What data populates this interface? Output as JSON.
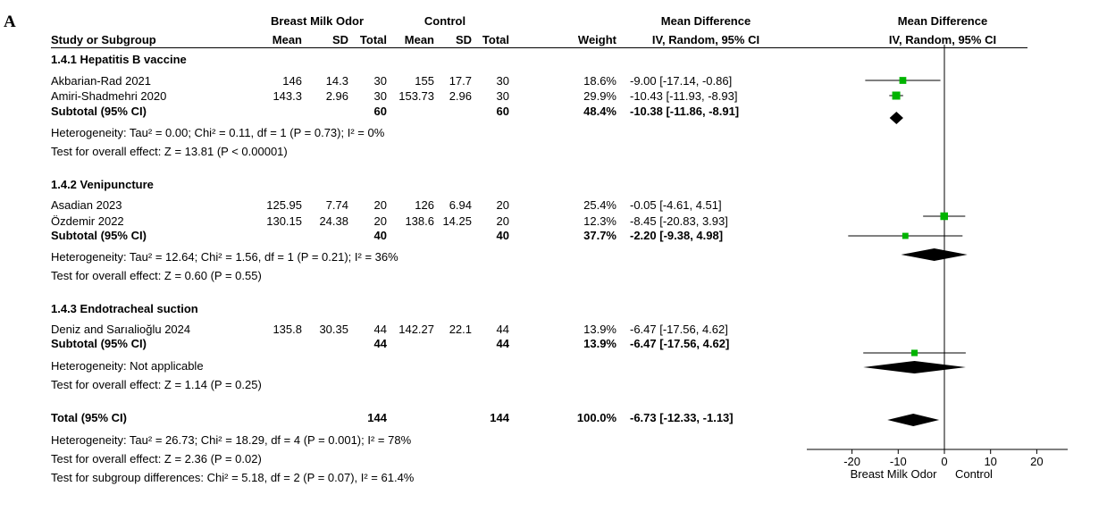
{
  "panel_label": "A",
  "header": {
    "group1": "Breast Milk Odor",
    "group2": "Control",
    "effect_line1": "Mean Difference",
    "effect_line2": "IV, Random, 95% CI",
    "plot_line1": "Mean Difference",
    "plot_line2": "IV, Random, 95% CI",
    "study_col": "Study or Subgroup",
    "mean1": "Mean",
    "sd1": "SD",
    "total1": "Total",
    "mean2": "Mean",
    "sd2": "SD",
    "total2": "Total",
    "weight": "Weight"
  },
  "subgroups": [
    {
      "title": "1.4.1 Hepatitis B vaccine",
      "studies": [
        {
          "name": "Akbarian-Rad 2021",
          "mean1": "146",
          "sd1": "14.3",
          "n1": "30",
          "mean2": "155",
          "sd2": "17.7",
          "n2": "30",
          "weight": "18.6%",
          "ci": "-9.00 [-17.14, -0.86]"
        },
        {
          "name": "Amiri-Shadmehri 2020",
          "mean1": "143.3",
          "sd1": "2.96",
          "n1": "30",
          "mean2": "153.73",
          "sd2": "2.96",
          "n2": "30",
          "weight": "29.9%",
          "ci": "-10.43 [-11.93, -8.93]"
        }
      ],
      "subtotal": {
        "label": "Subtotal (95% CI)",
        "n1": "60",
        "n2": "60",
        "weight": "48.4%",
        "ci": "-10.38 [-11.86, -8.91]"
      },
      "heterogeneity": "Heterogeneity: Tau² = 0.00; Chi² = 0.11, df = 1 (P = 0.73); I² = 0%",
      "overall": "Test for overall effect: Z = 13.81 (P < 0.00001)"
    },
    {
      "title": "1.4.2 Venipuncture",
      "studies": [
        {
          "name": "Asadian 2023",
          "mean1": "125.95",
          "sd1": "7.74",
          "n1": "20",
          "mean2": "126",
          "sd2": "6.94",
          "n2": "20",
          "weight": "25.4%",
          "ci": "-0.05 [-4.61, 4.51]"
        },
        {
          "name": "Özdemir 2022",
          "mean1": "130.15",
          "sd1": "24.38",
          "n1": "20",
          "mean2": "138.6",
          "sd2": "14.25",
          "n2": "20",
          "weight": "12.3%",
          "ci": "-8.45 [-20.83, 3.93]"
        }
      ],
      "subtotal": {
        "label": "Subtotal (95% CI)",
        "n1": "40",
        "n2": "40",
        "weight": "37.7%",
        "ci": "-2.20 [-9.38, 4.98]"
      },
      "heterogeneity": "Heterogeneity: Tau² = 12.64; Chi² = 1.56, df = 1 (P = 0.21); I² = 36%",
      "overall": "Test for overall effect: Z = 0.60 (P = 0.55)"
    },
    {
      "title": "1.4.3 Endotracheal suction",
      "studies": [
        {
          "name": "Deniz and Sarıalioğlu 2024",
          "mean1": "135.8",
          "sd1": "30.35",
          "n1": "44",
          "mean2": "142.27",
          "sd2": "22.1",
          "n2": "44",
          "weight": "13.9%",
          "ci": "-6.47 [-17.56, 4.62]"
        }
      ],
      "subtotal": {
        "label": "Subtotal (95% CI)",
        "n1": "44",
        "n2": "44",
        "weight": "13.9%",
        "ci": "-6.47 [-17.56, 4.62]"
      },
      "heterogeneity": "Heterogeneity: Not applicable",
      "overall": "Test for overall effect: Z = 1.14 (P = 0.25)"
    }
  ],
  "total": {
    "label": "Total (95% CI)",
    "n1": "144",
    "n2": "144",
    "weight": "100.0%",
    "ci": "-6.73 [-12.33, -1.13]",
    "heterogeneity": "Heterogeneity: Tau² = 26.73; Chi² = 18.29, df = 4 (P = 0.001); I² = 78%",
    "overall": "Test for overall effect: Z = 2.36 (P = 0.02)",
    "subgroup_diff": "Test for subgroup differences: Chi² = 5.18, df = 2 (P = 0.07), I² = 61.4%"
  },
  "chart_data": {
    "type": "forest",
    "x_ticks": [
      -20,
      -10,
      0,
      10,
      20
    ],
    "xlim": [
      -28,
      28
    ],
    "favours_left": "Breast Milk Odor",
    "favours_right": "Control",
    "colors": {
      "study_marker": "#00b400",
      "line": "#000000",
      "diamond": "#000000"
    },
    "studies": [
      {
        "name": "Akbarian-Rad 2021",
        "md": -9.0,
        "lo": -17.14,
        "hi": -0.86,
        "weight": 18.6
      },
      {
        "name": "Amiri-Shadmehri 2020",
        "md": -10.43,
        "lo": -11.93,
        "hi": -8.93,
        "weight": 29.9
      },
      {
        "name": "Asadian 2023",
        "md": -0.05,
        "lo": -4.61,
        "hi": 4.51,
        "weight": 25.4
      },
      {
        "name": "Özdemir 2022",
        "md": -8.45,
        "lo": -20.83,
        "hi": 3.93,
        "weight": 12.3
      },
      {
        "name": "Deniz and Sarıalioğlu 2024",
        "md": -6.47,
        "lo": -17.56,
        "hi": 4.62,
        "weight": 13.9
      }
    ],
    "diamonds": [
      {
        "name": "Subtotal 1.4.1",
        "md": -10.38,
        "lo": -11.86,
        "hi": -8.91
      },
      {
        "name": "Subtotal 1.4.2",
        "md": -2.2,
        "lo": -9.38,
        "hi": 4.98
      },
      {
        "name": "Subtotal 1.4.3",
        "md": -6.47,
        "lo": -17.56,
        "hi": 4.62
      },
      {
        "name": "Total",
        "md": -6.73,
        "lo": -12.33,
        "hi": -1.13
      }
    ]
  }
}
